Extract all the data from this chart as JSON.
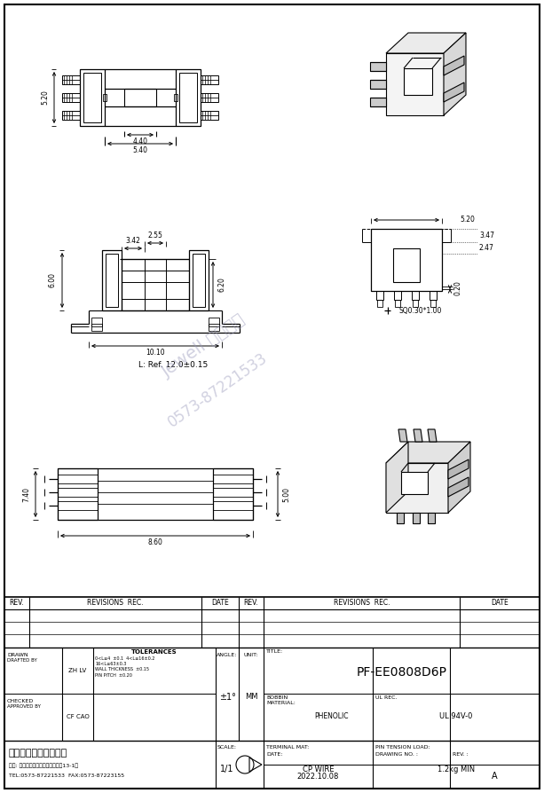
{
  "title": "PF-EE0808D6P",
  "bg_color": "#ffffff",
  "line_color": "#000000",
  "tolerances_lines": [
    "0<L≤4  ±0.1  4<L≤16±0.2",
    "16<L≤63±0.3",
    "WALL THICKNESS  ±0.15",
    "PIN PITCH  ±0.20"
  ],
  "company_name": "海宁捧晖电子有限公司",
  "company_addr": "地址: 浙江省海宁市盐官镇园区四路13-1号",
  "company_tel": "TEL:0573-87221533  FAX:0573-87223155"
}
